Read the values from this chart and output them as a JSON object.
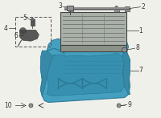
{
  "bg_color": "#f0f0eb",
  "tray_color": "#45a0c0",
  "tray_dark": "#2a7a95",
  "tray_mid": "#3890b0",
  "battery_body_color": "#a8b0a8",
  "battery_dark": "#787878",
  "battery_stripe": "#686868",
  "battery_light": "#c0c8c0",
  "hold_bar_color": "#909090",
  "line_color": "#444444",
  "label_color": "#333333",
  "label_fontsize": 5.5,
  "dashed_box_color": "#555555"
}
